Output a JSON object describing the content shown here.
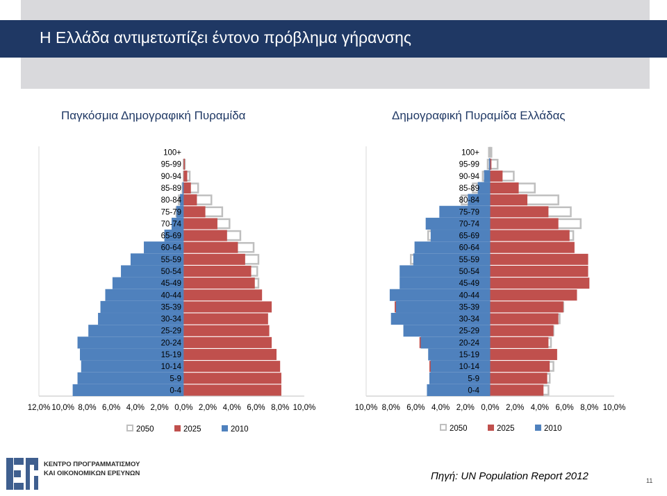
{
  "slide": {
    "title": "Η Ελλάδα αντιμετωπίζει έντονο πρόβλημα γήρανσης",
    "source": "Πηγή: UN Population Report 2012",
    "page_number": "11",
    "logo_line1": "ΚΕΝΤΡΟ ΠΡΟΓΡΑΜΜΑΤΙΣΜΟΥ",
    "logo_line2": "ΚΑΙ ΟΙΚΟΝΟΜΙΚΩΝ ΕΡΕΥΝΩΝ"
  },
  "colors": {
    "title_bar": "#1f3864",
    "series_2050": "#bfbfbf",
    "series_2025": "#c0504d",
    "series_2010": "#4f81bd"
  },
  "chart_data": [
    {
      "type": "bar",
      "orientation": "horizontal-pyramid",
      "title": "Παγκόσμια Δημογραφική Πυραμίδα",
      "categories": [
        "100+",
        "95-99",
        "90-94",
        "85-89",
        "80-84",
        "75-79",
        "70-74",
        "65-69",
        "60-64",
        "55-59",
        "50-54",
        "45-49",
        "40-44",
        "35-39",
        "30-34",
        "25-29",
        "20-24",
        "15-19",
        "10-14",
        "5-9",
        "0-4"
      ],
      "x_ticks": [
        "12,0%",
        "10,0%",
        "8,0%",
        "6,0%",
        "4,0%",
        "2,0%",
        "0,0%",
        "2,0%",
        "4,0%",
        "6,0%",
        "8,0%",
        "10,0%"
      ],
      "xlim": [
        -12,
        10
      ],
      "legend_position": "bottom",
      "series": [
        {
          "name": "2050",
          "left": [
            0,
            0,
            0,
            0.1,
            0.4,
            0.6,
            0.8,
            1.3,
            1.9,
            2.5,
            3.4,
            4.3,
            4.6,
            5.3,
            5.3,
            5.5,
            5.5,
            5.4,
            5.3,
            5.2,
            5.3
          ],
          "right": [
            0,
            0.1,
            0.5,
            1.2,
            2.3,
            3.2,
            3.8,
            4.7,
            5.8,
            6.2,
            6.1,
            6.2,
            6.3,
            6.4,
            6.4,
            6.5,
            6.5,
            6.4,
            6.6,
            6.6,
            6.8
          ]
        },
        {
          "name": "2025",
          "left": [
            0,
            0,
            0,
            0,
            0.1,
            0.3,
            0.6,
            1.0,
            1.7,
            2.5,
            3.2,
            3.8,
            3.9,
            4.7,
            5.3,
            5.3,
            5.7,
            5.9,
            6.0,
            6.1,
            6.1
          ],
          "right": [
            0,
            0.1,
            0.3,
            0.6,
            1.1,
            1.8,
            2.8,
            3.6,
            4.5,
            5.1,
            5.6,
            5.9,
            6.5,
            7.3,
            7.0,
            7.1,
            7.3,
            7.7,
            8.0,
            8.1,
            8.1
          ]
        },
        {
          "name": "2010",
          "left": [
            0,
            0,
            0,
            0.1,
            0.3,
            0.6,
            1.0,
            1.6,
            3.3,
            4.4,
            5.2,
            5.9,
            6.5,
            6.9,
            7.1,
            7.9,
            8.8,
            8.6,
            8.5,
            8.8,
            9.2
          ],
          "right": [
            0,
            0,
            0,
            0,
            0,
            0,
            0,
            0,
            0,
            0,
            0,
            0,
            0,
            0,
            0,
            0,
            0,
            0,
            0,
            0,
            0
          ]
        }
      ]
    },
    {
      "type": "bar",
      "orientation": "horizontal-pyramid",
      "title": "Δημογραφική Πυραμίδα Ελλάδας",
      "categories": [
        "100+",
        "95-99",
        "90-94",
        "85-89",
        "80-84",
        "75-79",
        "70-74",
        "65-69",
        "60-64",
        "55-59",
        "50-54",
        "45-49",
        "40-44",
        "35-39",
        "30-34",
        "25-29",
        "20-24",
        "15-19",
        "10-14",
        "5-9",
        "0-4"
      ],
      "x_ticks": [
        "10,0%",
        "8,0%",
        "6,0%",
        "4,0%",
        "2,0%",
        "0,0%",
        "2,0%",
        "4,0%",
        "6,0%",
        "8,0%",
        "10,0%"
      ],
      "xlim": [
        -10,
        10
      ],
      "legend_position": "bottom",
      "series": [
        {
          "name": "2050",
          "left": [
            0.1,
            0.2,
            0.6,
            1.4,
            2.3,
            3.1,
            3.9,
            5.0,
            5.9,
            6.4,
            7.0,
            7.1,
            7.7,
            7.3,
            7.3,
            6.6,
            5.5,
            4.9,
            4.7,
            4.8,
            5.0
          ],
          "right": [
            0.1,
            0.6,
            1.9,
            3.6,
            5.5,
            6.5,
            7.3,
            6.7,
            5.7,
            5.4,
            5.5,
            5.5,
            6.1,
            5.9,
            5.6,
            5.1,
            4.9,
            4.9,
            5.1,
            4.8,
            4.7
          ]
        },
        {
          "name": "2025",
          "left": [
            0,
            0,
            0.2,
            0.6,
            1.2,
            1.9,
            2.7,
            3.4,
            4.3,
            5.0,
            5.8,
            6.4,
            7.2,
            7.7,
            7.5,
            6.7,
            5.7,
            4.9,
            4.9,
            4.9,
            4.8
          ],
          "right": [
            0,
            0.1,
            1.0,
            2.3,
            3.0,
            4.7,
            5.5,
            6.4,
            6.8,
            7.9,
            7.9,
            8.0,
            7.0,
            5.9,
            5.5,
            5.1,
            4.7,
            5.4,
            4.8,
            4.6,
            4.3
          ]
        },
        {
          "name": "2010",
          "left": [
            0,
            0.1,
            0.5,
            1.0,
            1.8,
            4.1,
            5.2,
            4.8,
            6.1,
            6.2,
            7.3,
            7.3,
            8.1,
            7.6,
            8.0,
            7.0,
            5.6,
            5.0,
            4.8,
            4.9,
            5.1
          ],
          "right": [
            0,
            0,
            0,
            0,
            0,
            0,
            0,
            0,
            0,
            0,
            0,
            0,
            0,
            0,
            0,
            0,
            0,
            0,
            0,
            0,
            0
          ]
        }
      ]
    }
  ]
}
